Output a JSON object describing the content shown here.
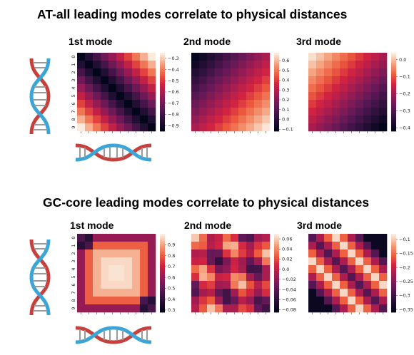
{
  "titles": {
    "section1": "AT-all leading modes correlate to physical distances",
    "section2": "GC-core leading modes correlate to physical distances"
  },
  "modes": [
    "1st mode",
    "2nd mode",
    "3rd mode"
  ],
  "icons": [
    "dna-helix-vertical-icon",
    "dna-helix-horizontal-icon"
  ],
  "colormap": "rocket",
  "chart_data": [
    {
      "type": "heatmap",
      "section": 1,
      "title": "1st mode",
      "ylabels": [
        "0",
        "1",
        "2",
        "3",
        "4",
        "5",
        "6",
        "7",
        "8",
        "9"
      ],
      "vmin": -0.95,
      "vmax": -0.25,
      "colorbar_ticks": [
        -0.3,
        -0.4,
        -0.5,
        -0.6,
        -0.7,
        -0.8,
        -0.9
      ],
      "pattern": "a+b*|i-j|",
      "a": -0.95,
      "b": 0.078
    },
    {
      "type": "heatmap",
      "section": 1,
      "title": "2nd mode",
      "vmin": -0.12,
      "vmax": 0.68,
      "colorbar_ticks": [
        0.6,
        0.5,
        0.4,
        0.3,
        0.2,
        0.1,
        0.0,
        -0.1
      ],
      "pattern": "a+b*(i+j)",
      "a": -0.12,
      "b": 0.044
    },
    {
      "type": "heatmap",
      "section": 1,
      "title": "3rd mode",
      "vmin": -0.42,
      "vmax": 0.04,
      "colorbar_ticks": [
        0.0,
        -0.1,
        -0.2,
        -0.3,
        -0.4
      ],
      "pattern": "a-b*(i+j)",
      "a": 0.03,
      "b": 0.025
    },
    {
      "type": "heatmap",
      "section": 2,
      "title": "1st mode",
      "ylabels": [
        "0",
        "1",
        "2",
        "3",
        "4",
        "5",
        "6",
        "7",
        "8",
        "9"
      ],
      "vmin": 0.28,
      "vmax": 1.0,
      "colorbar_ticks": [
        0.9,
        0.8,
        0.7,
        0.6,
        0.5,
        0.4,
        0.3
      ],
      "pattern": "core",
      "center": 0.99,
      "edge": 0.6,
      "corner": 0.3
    },
    {
      "type": "heatmap",
      "section": 2,
      "title": "2nd mode",
      "vmin": -0.085,
      "vmax": 0.07,
      "colorbar_ticks": [
        0.06,
        0.04,
        0.02,
        0.0,
        -0.02,
        -0.04,
        -0.06,
        -0.08
      ],
      "pattern": "checker",
      "amp": 0.06
    },
    {
      "type": "heatmap",
      "section": 2,
      "title": "3rd mode",
      "vmin": -0.36,
      "vmax": -0.08,
      "colorbar_ticks": [
        -0.1,
        -0.15,
        -0.2,
        -0.25,
        -0.3,
        -0.35
      ],
      "pattern": "band",
      "high": -0.09,
      "low": -0.35
    }
  ]
}
